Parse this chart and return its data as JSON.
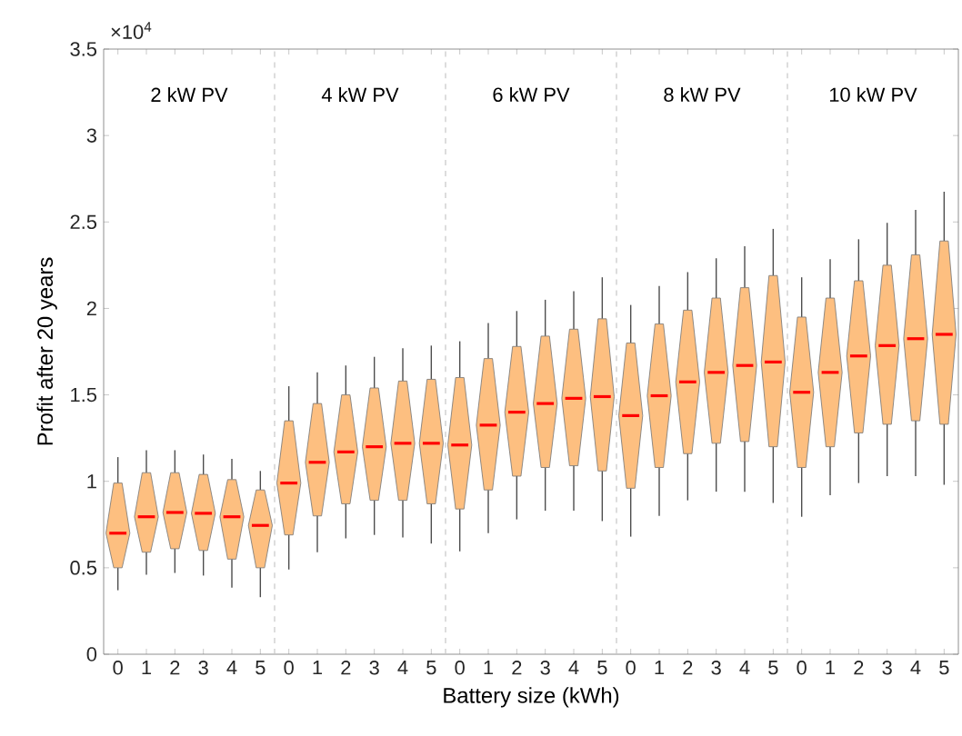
{
  "chart_data": {
    "type": "box",
    "xlabel": "Battery size (kWh)",
    "ylabel": "Profit after 20 years",
    "categories": [
      "0",
      "1",
      "2",
      "3",
      "4",
      "5",
      "0",
      "1",
      "2",
      "3",
      "4",
      "5",
      "0",
      "1",
      "2",
      "3",
      "4",
      "5",
      "0",
      "1",
      "2",
      "3",
      "4",
      "5",
      "0",
      "1",
      "2",
      "3",
      "4",
      "5"
    ],
    "color": "#fdbf80",
    "boxes": [
      {
        "low": 0.37,
        "q1": 0.5,
        "median": 0.7,
        "q3": 0.99,
        "high": 1.14
      },
      {
        "low": 0.46,
        "q1": 0.59,
        "median": 0.795,
        "q3": 1.05,
        "high": 1.18
      },
      {
        "low": 0.47,
        "q1": 0.61,
        "median": 0.82,
        "q3": 1.05,
        "high": 1.18
      },
      {
        "low": 0.455,
        "q1": 0.6,
        "median": 0.815,
        "q3": 1.04,
        "high": 1.155
      },
      {
        "low": 0.385,
        "q1": 0.55,
        "median": 0.795,
        "q3": 1.01,
        "high": 1.13
      },
      {
        "low": 0.33,
        "q1": 0.5,
        "median": 0.745,
        "q3": 0.95,
        "high": 1.06
      },
      {
        "low": 0.49,
        "q1": 0.69,
        "median": 0.99,
        "q3": 1.35,
        "high": 1.55
      },
      {
        "low": 0.59,
        "q1": 0.8,
        "median": 1.11,
        "q3": 1.45,
        "high": 1.63
      },
      {
        "low": 0.67,
        "q1": 0.87,
        "median": 1.17,
        "q3": 1.5,
        "high": 1.67
      },
      {
        "low": 0.69,
        "q1": 0.89,
        "median": 1.2,
        "q3": 1.54,
        "high": 1.72
      },
      {
        "low": 0.675,
        "q1": 0.89,
        "median": 1.22,
        "q3": 1.58,
        "high": 1.77
      },
      {
        "low": 0.64,
        "q1": 0.87,
        "median": 1.22,
        "q3": 1.59,
        "high": 1.785
      },
      {
        "low": 0.595,
        "q1": 0.84,
        "median": 1.21,
        "q3": 1.6,
        "high": 1.81
      },
      {
        "low": 0.7,
        "q1": 0.95,
        "median": 1.325,
        "q3": 1.71,
        "high": 1.915
      },
      {
        "low": 0.78,
        "q1": 1.03,
        "median": 1.4,
        "q3": 1.78,
        "high": 1.985
      },
      {
        "low": 0.83,
        "q1": 1.08,
        "median": 1.45,
        "q3": 1.84,
        "high": 2.05
      },
      {
        "low": 0.83,
        "q1": 1.09,
        "median": 1.48,
        "q3": 1.88,
        "high": 2.1
      },
      {
        "low": 0.77,
        "q1": 1.06,
        "median": 1.49,
        "q3": 1.94,
        "high": 2.18
      },
      {
        "low": 0.68,
        "q1": 0.96,
        "median": 1.38,
        "q3": 1.8,
        "high": 2.02
      },
      {
        "low": 0.8,
        "q1": 1.08,
        "median": 1.495,
        "q3": 1.91,
        "high": 2.13
      },
      {
        "low": 0.89,
        "q1": 1.16,
        "median": 1.575,
        "q3": 1.99,
        "high": 2.21
      },
      {
        "low": 0.94,
        "q1": 1.22,
        "median": 1.63,
        "q3": 2.06,
        "high": 2.29
      },
      {
        "low": 0.94,
        "q1": 1.23,
        "median": 1.67,
        "q3": 2.12,
        "high": 2.36
      },
      {
        "low": 0.875,
        "q1": 1.2,
        "median": 1.69,
        "q3": 2.19,
        "high": 2.46
      },
      {
        "low": 0.795,
        "q1": 1.08,
        "median": 1.515,
        "q3": 1.95,
        "high": 2.18
      },
      {
        "low": 0.92,
        "q1": 1.2,
        "median": 1.63,
        "q3": 2.06,
        "high": 2.285
      },
      {
        "low": 0.99,
        "q1": 1.28,
        "median": 1.725,
        "q3": 2.16,
        "high": 2.4
      },
      {
        "low": 1.03,
        "q1": 1.33,
        "median": 1.785,
        "q3": 2.25,
        "high": 2.495
      },
      {
        "low": 1.03,
        "q1": 1.35,
        "median": 1.825,
        "q3": 2.31,
        "high": 2.57
      },
      {
        "low": 0.98,
        "q1": 1.33,
        "median": 1.85,
        "q3": 2.39,
        "high": 2.675
      }
    ],
    "ylim": [
      0,
      3.5
    ],
    "yticks": [
      0,
      0.5,
      1,
      1.5,
      2,
      2.5,
      3,
      3.5
    ],
    "annotations": [
      "×10$^{4}$",
      "2 kW PV",
      "4 kW PV",
      "6 kW PV",
      "8 kW PV",
      "10 kW PV"
    ],
    "grid": false
  }
}
